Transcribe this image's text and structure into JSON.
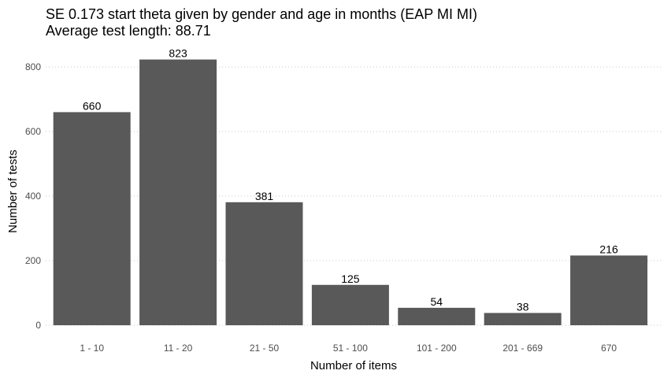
{
  "chart_data": {
    "type": "bar",
    "title": "SE 0.173 start theta given by gender and age in months (EAP MI MI)",
    "subtitle": "Average test length: 88.71",
    "xlabel": "Number of items",
    "ylabel": "Number of tests",
    "categories": [
      "1 - 10",
      "11 - 20",
      "21 - 50",
      "51 - 100",
      "101 - 200",
      "201 - 669",
      "670"
    ],
    "values": [
      660,
      823,
      381,
      125,
      54,
      38,
      216
    ],
    "data_labels": [
      "660",
      "823",
      "381",
      "125",
      "54",
      "38",
      "216"
    ],
    "y_ticks": [
      0,
      200,
      400,
      600,
      800
    ],
    "ylim": [
      0,
      860
    ],
    "grid": "horizontal dotted",
    "bar_color": "#595959",
    "legend": "none"
  }
}
